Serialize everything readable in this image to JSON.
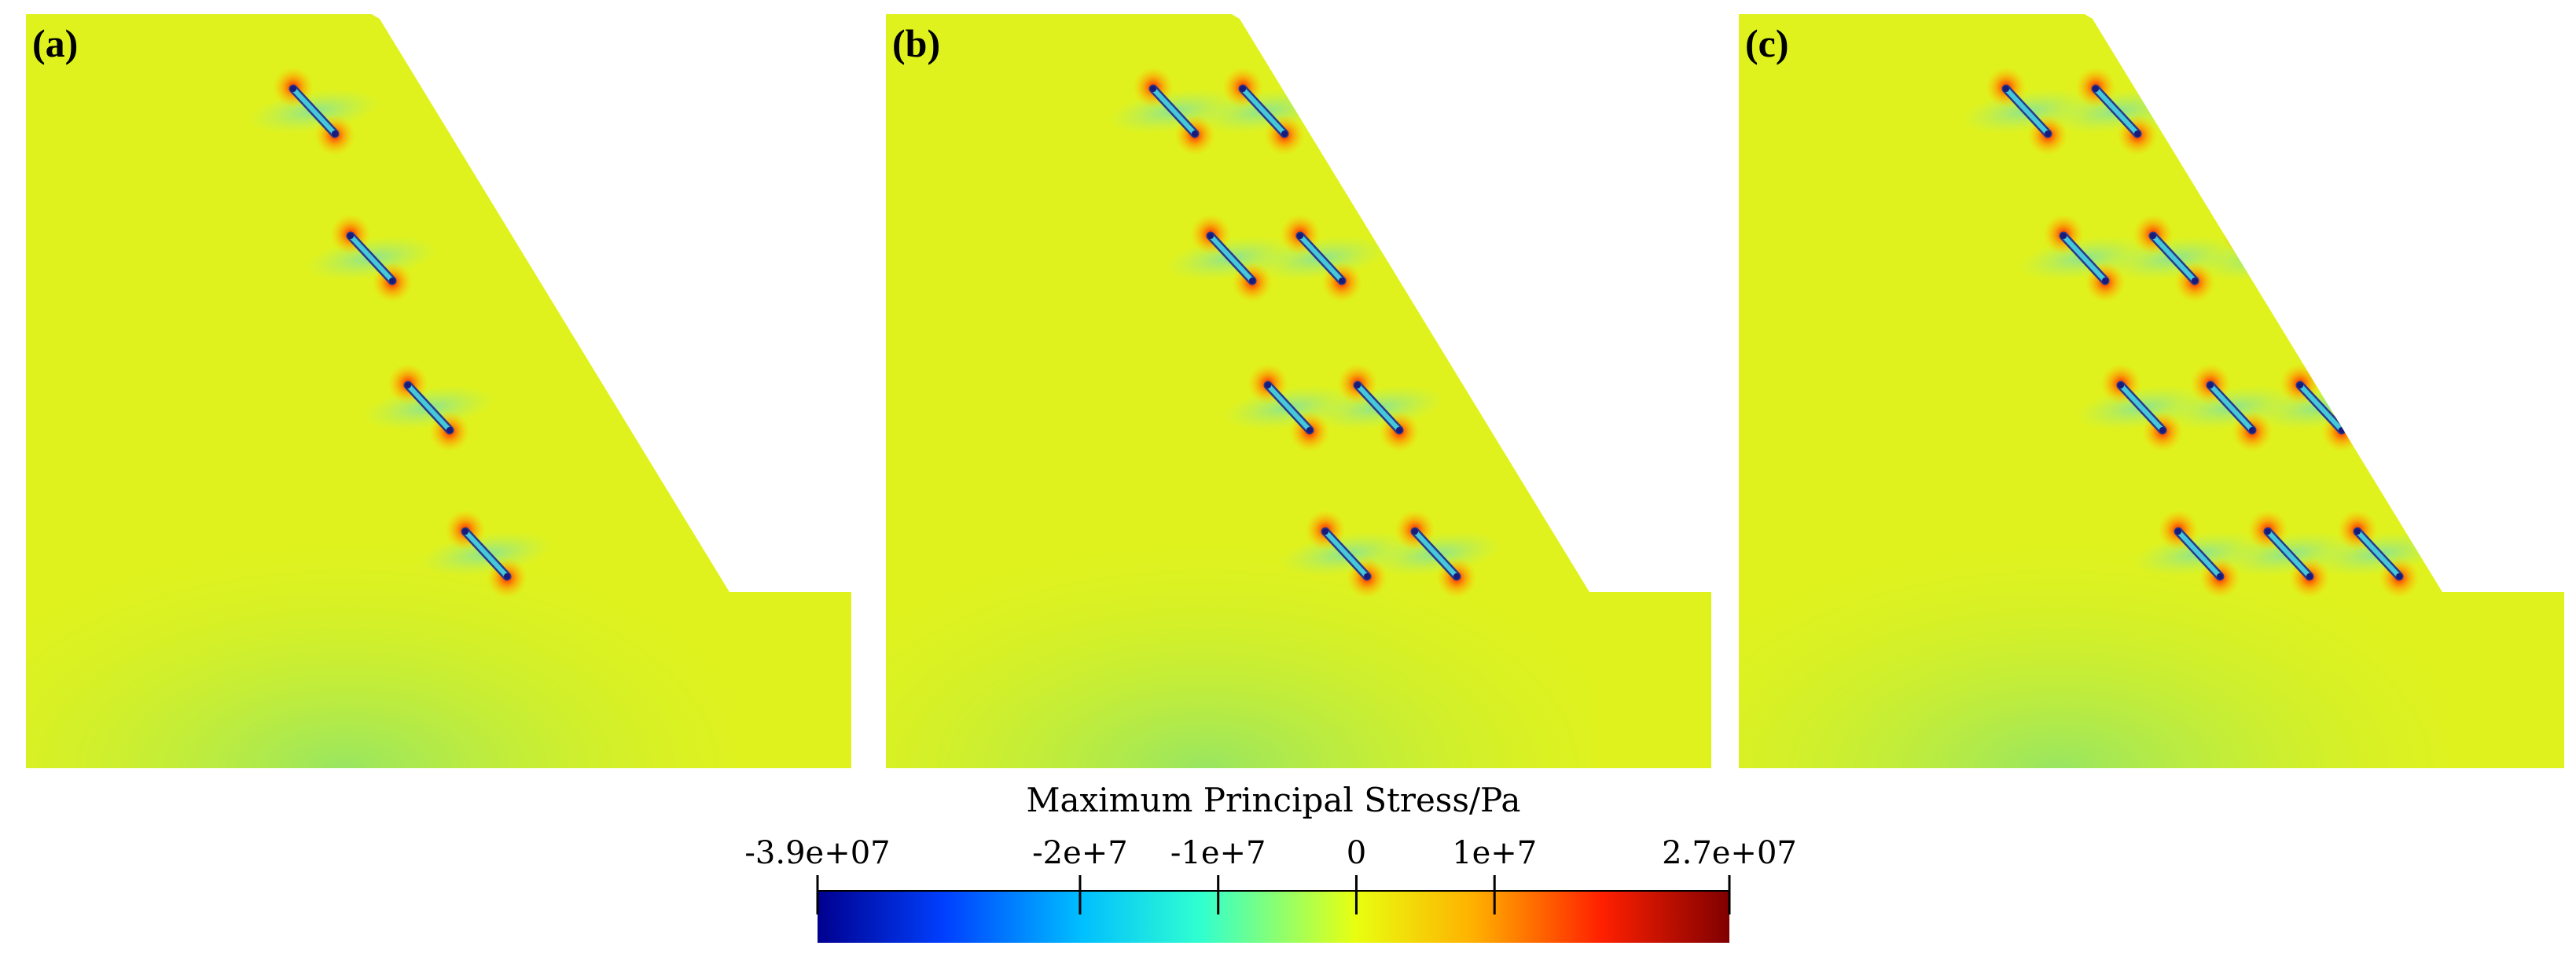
{
  "panels": [
    {
      "label": "(a)",
      "columns": 1
    },
    {
      "label": "(b)",
      "columns": 2
    },
    {
      "label": "(c)",
      "columns": 3
    }
  ],
  "colorbar": {
    "title": "Maximum Principal Stress/Pa",
    "min": -39000000,
    "max": 27000000,
    "ticks": [
      {
        "value": -39000000,
        "label": "-3.9e+07"
      },
      {
        "value": -20000000,
        "label": "-2e+7"
      },
      {
        "value": -10000000,
        "label": "-1e+7"
      },
      {
        "value": 0,
        "label": "0"
      },
      {
        "value": 10000000,
        "label": "1e+7"
      },
      {
        "value": 27000000,
        "label": "2.7e+07"
      }
    ],
    "colors": [
      "#00008f",
      "#0050ff",
      "#00dfff",
      "#7fff7f",
      "#e5ff1a",
      "#ffb000",
      "#ff2000",
      "#800000"
    ]
  },
  "colors": {
    "body_fill": "#dff21e",
    "body_tint": "#8fe46a",
    "anchor_fill": "#45c8d8",
    "anchor_end": "#1a1a7a",
    "hot_spot": "#ff3010",
    "cool_halo": "#66e0c8"
  }
}
